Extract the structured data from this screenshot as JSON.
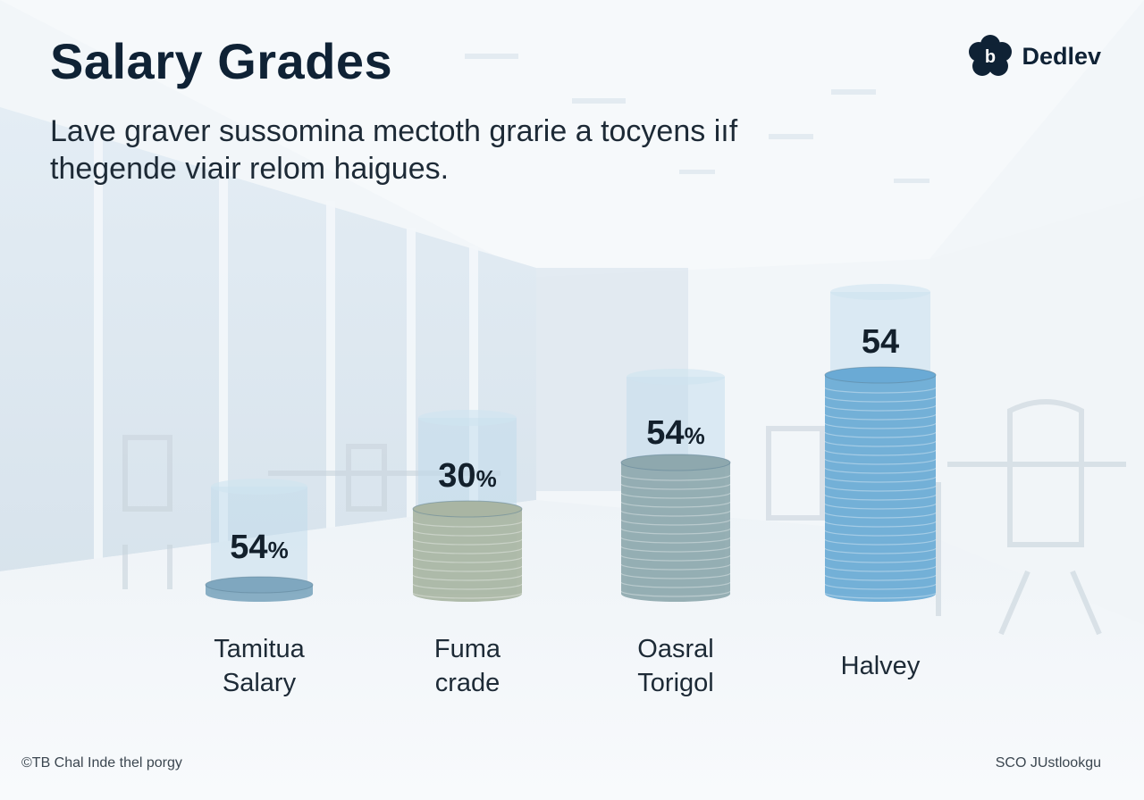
{
  "header": {
    "title": "Salary Grades",
    "subtitle": "Lave graver sussomina mectoth grarie a tocyens iıf thegende viair relom haigues."
  },
  "brand": {
    "name": "Dedlev",
    "icon": "flower-logo-icon",
    "icon_letter": "b"
  },
  "chart_data": {
    "type": "bar",
    "style": "3d-cylinder-stacks",
    "categories": [
      "Tamitua\nSalary",
      "Fuma\ncrade",
      "Oasral\nTorigol",
      "Halvey"
    ],
    "values": [
      54,
      30,
      54,
      54
    ],
    "value_labels": [
      "54%",
      "30%",
      "54%",
      "54"
    ],
    "fill_levels": [
      0.08,
      0.35,
      0.55,
      0.85
    ],
    "colors": [
      "#7fa7bf",
      "#a9b5a3",
      "#8ea8ae",
      "#6aaad5"
    ],
    "title": "",
    "xlabel": "",
    "ylabel": "",
    "grid": false,
    "legend": "none"
  },
  "footer": {
    "left": "©TB Chal Inde thel porgy",
    "right": "SCO JUstlookgu"
  }
}
